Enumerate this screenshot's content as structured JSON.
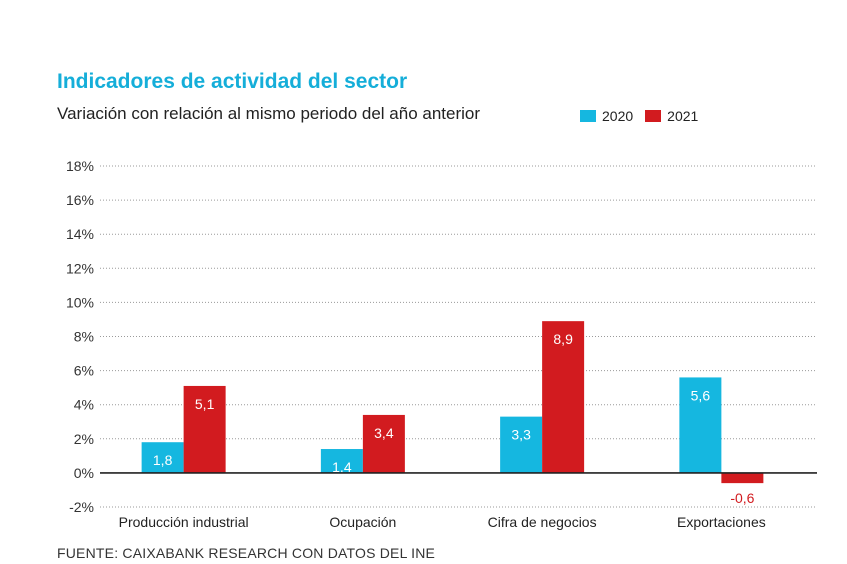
{
  "header": {
    "title": "Indicadores de actividad del sector",
    "subtitle": "Variación con relación al mismo periodo del año anterior"
  },
  "source": "FUENTE: CAIXABANK RESEARCH CON DATOS DEL INE",
  "colors": {
    "title": "#15aed9",
    "2020": "#15b7e0",
    "2021": "#d21b1f"
  },
  "chart_data": {
    "type": "bar",
    "categories": [
      "Producción industrial",
      "Ocupación",
      "Cifra de negocios",
      "Exportaciones"
    ],
    "series": [
      {
        "name": "2020",
        "values": [
          1.8,
          1.4,
          3.3,
          5.6
        ],
        "labels": [
          "1,8",
          "1,4",
          "3,3",
          "5,6"
        ],
        "color": "#15b7e0"
      },
      {
        "name": "2021",
        "values": [
          5.1,
          3.4,
          8.9,
          -0.6
        ],
        "labels": [
          "5,1",
          "3,4",
          "8,9",
          "-0,6"
        ],
        "color": "#d21b1f"
      }
    ],
    "y_ticks": [
      -2,
      0,
      2,
      4,
      6,
      8,
      10,
      12,
      14,
      16,
      18
    ],
    "y_tick_labels": [
      "-2%",
      "0%",
      "2%",
      "4%",
      "6%",
      "8%",
      "10%",
      "12%",
      "14%",
      "16%",
      "18%"
    ],
    "ylim": [
      -2,
      18
    ],
    "grid": "horizontal dotted",
    "legend_position": "top-right"
  }
}
